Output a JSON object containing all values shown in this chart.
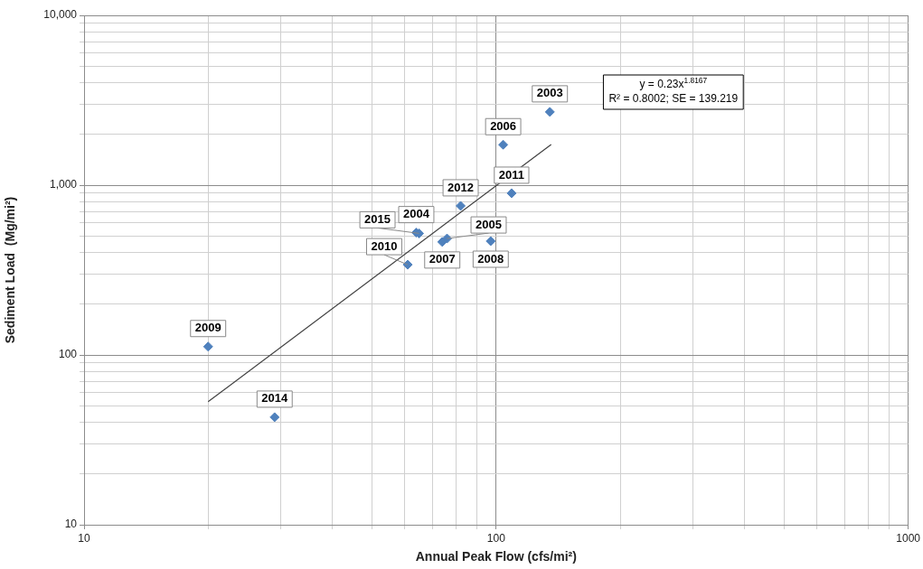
{
  "chart_data": {
    "type": "scatter",
    "xlabel": "Annual Peak Flow (cfs/mi²)",
    "ylabel": "Sediment Load  (Mg/mi²)",
    "log": "xy",
    "grid": true,
    "xlim": [
      10,
      1000
    ],
    "ylim": [
      10,
      10000
    ],
    "xticks": [
      10,
      {
        "value": 20,
        "label": null
      },
      {
        "value": 30,
        "label": null
      },
      {
        "value": 40,
        "label": null
      },
      {
        "value": 50,
        "label": null
      },
      {
        "value": 60,
        "label": null
      },
      {
        "value": 70,
        "label": null
      },
      {
        "value": 80,
        "label": null
      },
      {
        "value": 90,
        "label": null
      },
      100,
      {
        "value": 200,
        "label": null
      },
      {
        "value": 300,
        "label": null
      },
      {
        "value": 400,
        "label": null
      },
      {
        "value": 500,
        "label": null
      },
      {
        "value": 600,
        "label": null
      },
      {
        "value": 700,
        "label": null
      },
      {
        "value": 800,
        "label": null
      },
      {
        "value": 900,
        "label": null
      },
      1000
    ],
    "yticks": [
      10,
      {
        "value": 20,
        "label": null
      },
      {
        "value": 30,
        "label": null
      },
      {
        "value": 40,
        "label": null
      },
      {
        "value": 50,
        "label": null
      },
      {
        "value": 60,
        "label": null
      },
      {
        "value": 70,
        "label": null
      },
      {
        "value": 80,
        "label": null
      },
      {
        "value": 90,
        "label": null
      },
      100,
      {
        "value": 200,
        "label": null
      },
      {
        "value": 300,
        "label": null
      },
      {
        "value": 400,
        "label": null
      },
      {
        "value": 500,
        "label": null
      },
      {
        "value": 600,
        "label": null
      },
      {
        "value": 700,
        "label": null
      },
      {
        "value": 800,
        "label": null
      },
      {
        "value": 900,
        "label": null
      },
      {
        "value": 1000,
        "label": "1,000"
      },
      {
        "value": 2000,
        "label": null
      },
      {
        "value": 3000,
        "label": null
      },
      {
        "value": 4000,
        "label": null
      },
      {
        "value": 5000,
        "label": null
      },
      {
        "value": 6000,
        "label": null
      },
      {
        "value": 7000,
        "label": null
      },
      {
        "value": 8000,
        "label": null
      },
      {
        "value": 9000,
        "label": null
      },
      {
        "value": 10000,
        "label": "10,000"
      }
    ],
    "series": [
      {
        "marker": "diamond",
        "color": "#4f81bd",
        "x": [
          135,
          104,
          20,
          29,
          61,
          64,
          65,
          74,
          76,
          82,
          97,
          109
        ],
        "values": [
          2700,
          1730,
          112,
          43,
          340,
          525,
          520,
          463,
          485,
          755,
          468,
          896
        ]
      },
      {
        "type": "line",
        "marker": "none",
        "color": "#404040",
        "x": [
          20,
          136
        ],
        "values": [
          53,
          1735
        ]
      }
    ],
    "annotations": [
      {
        "text": "2003",
        "x": 135,
        "y": 2700
      },
      {
        "text": "2006",
        "x": 104,
        "y": 1730
      },
      {
        "text": "2009",
        "x": 20,
        "y": 112
      },
      {
        "text": "2014",
        "x": 29,
        "y": 43
      },
      {
        "text": "2010",
        "x": 61,
        "y": 340
      },
      {
        "text": "2004",
        "x": 64,
        "y": 525
      },
      {
        "text": "2015",
        "x": 65,
        "y": 520
      },
      {
        "text": "2007",
        "x": 74,
        "y": 463
      },
      {
        "text": "2005",
        "x": 76,
        "y": 485
      },
      {
        "text": "2012",
        "x": 82,
        "y": 755
      },
      {
        "text": "2008",
        "x": 97,
        "y": 468
      },
      {
        "text": "2011",
        "x": 109,
        "y": 896
      },
      "y = 0.23x$^{1.8167}$",
      "R² = 0.8002; SE = 139.219"
    ]
  }
}
